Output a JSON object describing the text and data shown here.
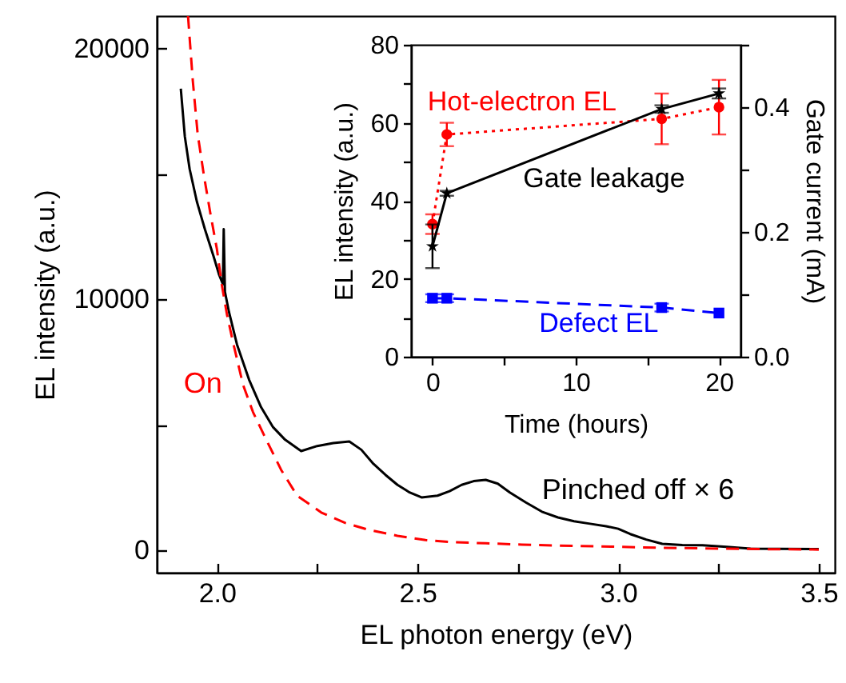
{
  "chart_data": [
    {
      "type": "line",
      "xlabel": "EL photon energy (eV)",
      "ylabel": "EL intensity (a.u.)",
      "xlim": [
        1.85,
        3.54
      ],
      "ylim": [
        -900,
        21300
      ],
      "xticks": [
        {
          "value": 2,
          "label": "2.0"
        },
        {
          "value": 2.25,
          "label": null
        },
        {
          "value": 2.5,
          "label": "2.5"
        },
        {
          "value": 2.75,
          "label": null
        },
        {
          "value": 3,
          "label": "3.0"
        },
        {
          "value": 3.25,
          "label": null
        },
        {
          "value": 3.5,
          "label": "3.5"
        }
      ],
      "yticks": [
        0,
        {
          "value": 5000,
          "label": null
        },
        10000,
        {
          "value": 15000,
          "label": null
        },
        20000
      ],
      "marker": "none",
      "series": [
        {
          "name": "Pinched off × 6",
          "color": "#000000",
          "line_style": "solid",
          "x": [
            1.91,
            1.92,
            1.932,
            1.95,
            1.97,
            1.992,
            2.005,
            2.015,
            2.017,
            2.02,
            2.03,
            2.05,
            2.08,
            2.11,
            2.14,
            2.17,
            2.21,
            2.25,
            2.29,
            2.33,
            2.36,
            2.39,
            2.42,
            2.45,
            2.48,
            2.51,
            2.55,
            2.58,
            2.61,
            2.64,
            2.67,
            2.7,
            2.73,
            2.77,
            2.81,
            2.85,
            2.89,
            2.93,
            2.97,
            3.0,
            3.03,
            3.07,
            3.11,
            3.16,
            3.21,
            3.27,
            3.33,
            3.4,
            3.5
          ],
          "values": [
            18400,
            16500,
            15200,
            13900,
            12800,
            11700,
            11000,
            10600,
            12800,
            10300,
            9500,
            8200,
            6800,
            5700,
            4900,
            4400,
            3950,
            4150,
            4270,
            4330,
            4000,
            3440,
            3000,
            2600,
            2300,
            2100,
            2170,
            2350,
            2600,
            2750,
            2800,
            2650,
            2300,
            1900,
            1530,
            1300,
            1150,
            1050,
            950,
            850,
            640,
            420,
            250,
            200,
            190,
            130,
            60,
            50,
            40
          ]
        },
        {
          "name": "On",
          "color": "#ff0000",
          "line_style": "dashed",
          "x": [
            1.928,
            1.94,
            1.952,
            1.968,
            1.984,
            2.0,
            2.012,
            2.025,
            2.04,
            2.065,
            2.09,
            2.12,
            2.16,
            2.2,
            2.26,
            2.32,
            2.38,
            2.45,
            2.52,
            2.58,
            2.67,
            2.76,
            2.85,
            2.95,
            3.05,
            3.15,
            3.25,
            3.35,
            3.5
          ],
          "values": [
            21300,
            18700,
            16600,
            14900,
            13400,
            12000,
            10600,
            9400,
            8300,
            6600,
            5500,
            4500,
            3200,
            2170,
            1500,
            1080,
            800,
            570,
            400,
            320,
            270,
            220,
            180,
            150,
            110,
            80,
            60,
            40,
            20
          ]
        }
      ]
    },
    {
      "type": "line",
      "xlabel": "Time (hours)",
      "ylabel": "EL intensity (a.u.)",
      "y2label": "Gate current (mA)",
      "x": [
        0,
        1,
        16,
        20
      ],
      "xlim": [
        -1.5,
        21.5
      ],
      "ylim": [
        0,
        80
      ],
      "y2lim": [
        0,
        0.5
      ],
      "xticks": [
        0,
        {
          "value": 5,
          "label": null
        },
        10,
        {
          "value": 15,
          "label": null
        },
        20
      ],
      "yticks": [
        0,
        {
          "value": 10,
          "label": null
        },
        20,
        {
          "value": 30,
          "label": null
        },
        40,
        {
          "value": 50,
          "label": null
        },
        60,
        {
          "value": 70,
          "label": null
        },
        80
      ],
      "y2ticks": [
        {
          "value": 0,
          "label": "0.0"
        },
        {
          "value": 0.1,
          "label": null
        },
        {
          "value": 0.2,
          "label": "0.2"
        },
        {
          "value": 0.3,
          "label": null
        },
        {
          "value": 0.4,
          "label": "0.4"
        },
        {
          "value": 0.5,
          "label": null
        }
      ],
      "series": [
        {
          "name": "Hot-electron EL",
          "color": "#ff0000",
          "line_style": "dotted",
          "marker": "circle",
          "values": [
            34,
            57,
            61,
            64
          ],
          "errors": [
            2.5,
            3,
            6.5,
            7
          ]
        },
        {
          "name": "Gate leakage",
          "color": "#000000",
          "line_style": "solid",
          "marker": "star",
          "axis": "y2",
          "values": [
            0.177,
            0.262,
            0.397,
            0.422
          ],
          "errors": [
            0.035,
            0.004,
            0.006,
            0.008
          ]
        },
        {
          "name": "Defect EL",
          "color": "#0000ff",
          "line_style": "dashed",
          "marker": "square",
          "values": [
            15,
            15,
            12.6,
            11.2
          ],
          "errors": [
            1,
            1,
            1,
            null
          ]
        }
      ]
    }
  ]
}
